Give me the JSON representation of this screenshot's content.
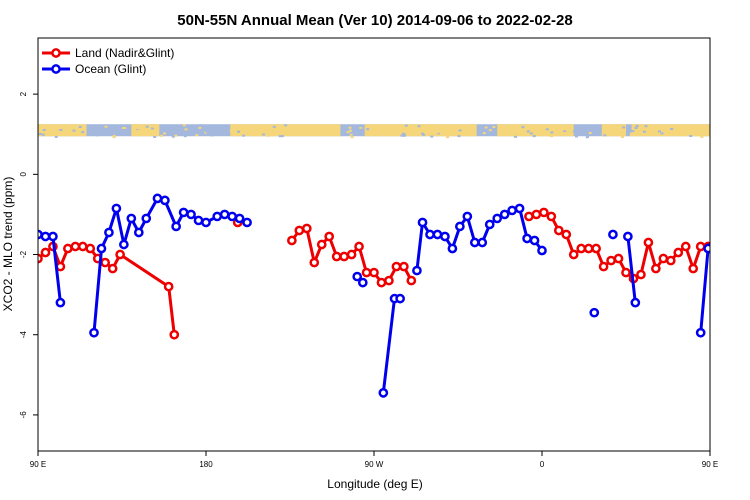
{
  "chart_data": {
    "type": "line",
    "title": "50N-55N Annual Mean (Ver 10)   2014-09-06 to 2022-02-28",
    "xlabel": "Longitude (deg E)",
    "ylabel": "XCO2 - MLO trend (ppm)",
    "xlim": [
      90,
      450
    ],
    "ylim": [
      -6.9,
      3.4
    ],
    "x_ticks": [
      {
        "value": 90,
        "label": "90 E"
      },
      {
        "value": 180,
        "label": "180"
      },
      {
        "value": 270,
        "label": "90 W"
      },
      {
        "value": 360,
        "label": "0"
      },
      {
        "value": 450,
        "label": "90 E"
      },
      {
        "value": 540,
        "label": "180"
      }
    ],
    "y_ticks": [
      {
        "value": 2,
        "label": "2"
      },
      {
        "value": 0,
        "label": "0"
      },
      {
        "value": -2,
        "label": "-2"
      },
      {
        "value": -4,
        "label": "-4"
      },
      {
        "value": -6,
        "label": "-6"
      }
    ],
    "grid": false,
    "legend_position": "top-left",
    "land_ocean_strip": {
      "y_range": [
        0.95,
        1.25
      ],
      "land_color": "#f5d67a",
      "ocean_color": "#a3b8dc"
    },
    "series": [
      {
        "name": "Land (Nadir&Glint)",
        "color": "#ee0000",
        "segments": [
          [
            [
              90,
              -2.1
            ],
            [
              94,
              -1.95
            ],
            [
              98,
              -1.8
            ],
            [
              102,
              -2.3
            ],
            [
              106,
              -1.85
            ],
            [
              110,
              -1.8
            ],
            [
              114,
              -1.8
            ],
            [
              118,
              -1.85
            ],
            [
              122,
              -2.1
            ],
            [
              126,
              -2.2
            ],
            [
              130,
              -2.35
            ],
            [
              134,
              -2.0
            ],
            [
              160,
              -2.8
            ],
            [
              163,
              -4.0
            ]
          ],
          [
            [
              197,
              -1.2
            ]
          ],
          [
            [
              226,
              -1.65
            ],
            [
              230,
              -1.4
            ],
            [
              234,
              -1.35
            ],
            [
              238,
              -2.2
            ],
            [
              242,
              -1.75
            ],
            [
              246,
              -1.55
            ],
            [
              250,
              -2.05
            ],
            [
              254,
              -2.05
            ],
            [
              258,
              -2.0
            ],
            [
              262,
              -1.8
            ],
            [
              266,
              -2.45
            ],
            [
              270,
              -2.45
            ],
            [
              274,
              -2.7
            ],
            [
              278,
              -2.65
            ],
            [
              282,
              -2.3
            ],
            [
              286,
              -2.3
            ],
            [
              290,
              -2.65
            ]
          ],
          [
            [
              353,
              -1.05
            ],
            [
              357,
              -1.0
            ],
            [
              361,
              -0.95
            ],
            [
              365,
              -1.05
            ],
            [
              369,
              -1.4
            ],
            [
              373,
              -1.5
            ],
            [
              377,
              -2.0
            ],
            [
              381,
              -1.85
            ],
            [
              385,
              -1.85
            ],
            [
              389,
              -1.85
            ],
            [
              393,
              -2.3
            ],
            [
              397,
              -2.15
            ],
            [
              401,
              -2.1
            ],
            [
              405,
              -2.45
            ],
            [
              409,
              -2.6
            ],
            [
              413,
              -2.5
            ],
            [
              417,
              -1.7
            ],
            [
              421,
              -2.35
            ],
            [
              425,
              -2.1
            ],
            [
              429,
              -2.15
            ],
            [
              433,
              -1.95
            ],
            [
              437,
              -1.8
            ],
            [
              441,
              -2.35
            ],
            [
              445,
              -1.8
            ],
            [
              449,
              -1.8
            ],
            [
              453,
              -1.8
            ],
            [
              457,
              -2.1
            ],
            [
              461,
              -2.2
            ],
            [
              465,
              -2.35
            ],
            [
              470,
              -2.8
            ],
            [
              473,
              -4.0
            ]
          ]
        ]
      },
      {
        "name": "Ocean (Glint)",
        "color": "#0000ee",
        "segments": [
          [
            [
              90,
              -1.5
            ],
            [
              94,
              -1.55
            ],
            [
              98,
              -1.55
            ],
            [
              102,
              -3.2
            ]
          ],
          [
            [
              120,
              -3.95
            ],
            [
              124,
              -1.85
            ],
            [
              128,
              -1.45
            ],
            [
              132,
              -0.85
            ],
            [
              136,
              -1.75
            ],
            [
              140,
              -1.1
            ],
            [
              144,
              -1.45
            ],
            [
              148,
              -1.1
            ],
            [
              154,
              -0.6
            ],
            [
              158,
              -0.65
            ],
            [
              164,
              -1.3
            ],
            [
              168,
              -0.95
            ],
            [
              172,
              -1.0
            ],
            [
              176,
              -1.15
            ],
            [
              180,
              -1.2
            ],
            [
              186,
              -1.05
            ],
            [
              190,
              -1.0
            ],
            [
              194,
              -1.05
            ],
            [
              198,
              -1.1
            ],
            [
              202,
              -1.2
            ]
          ],
          [
            [
              261,
              -2.55
            ],
            [
              264,
              -2.7
            ]
          ],
          [
            [
              275,
              -5.45
            ],
            [
              281,
              -3.1
            ],
            [
              284,
              -3.1
            ]
          ],
          [
            [
              293,
              -2.4
            ],
            [
              296,
              -1.2
            ],
            [
              300,
              -1.5
            ],
            [
              304,
              -1.5
            ],
            [
              308,
              -1.55
            ],
            [
              312,
              -1.85
            ],
            [
              316,
              -1.3
            ],
            [
              320,
              -1.05
            ],
            [
              324,
              -1.7
            ],
            [
              328,
              -1.7
            ],
            [
              332,
              -1.25
            ],
            [
              336,
              -1.1
            ],
            [
              340,
              -1.0
            ],
            [
              344,
              -0.9
            ],
            [
              348,
              -0.85
            ],
            [
              352,
              -1.6
            ],
            [
              356,
              -1.65
            ],
            [
              360,
              -1.9
            ]
          ],
          [
            [
              388,
              -3.45
            ]
          ],
          [
            [
              398,
              -1.5
            ]
          ],
          [
            [
              406,
              -1.55
            ],
            [
              410,
              -3.2
            ]
          ],
          [
            [
              445,
              -3.95
            ],
            [
              449,
              -1.85
            ],
            [
              453,
              -1.45
            ],
            [
              457,
              -0.85
            ],
            [
              461,
              -1.75
            ],
            [
              465,
              -1.1
            ],
            [
              469,
              -1.4
            ],
            [
              473,
              -1.1
            ],
            [
              478,
              -0.6
            ]
          ]
        ]
      }
    ]
  }
}
